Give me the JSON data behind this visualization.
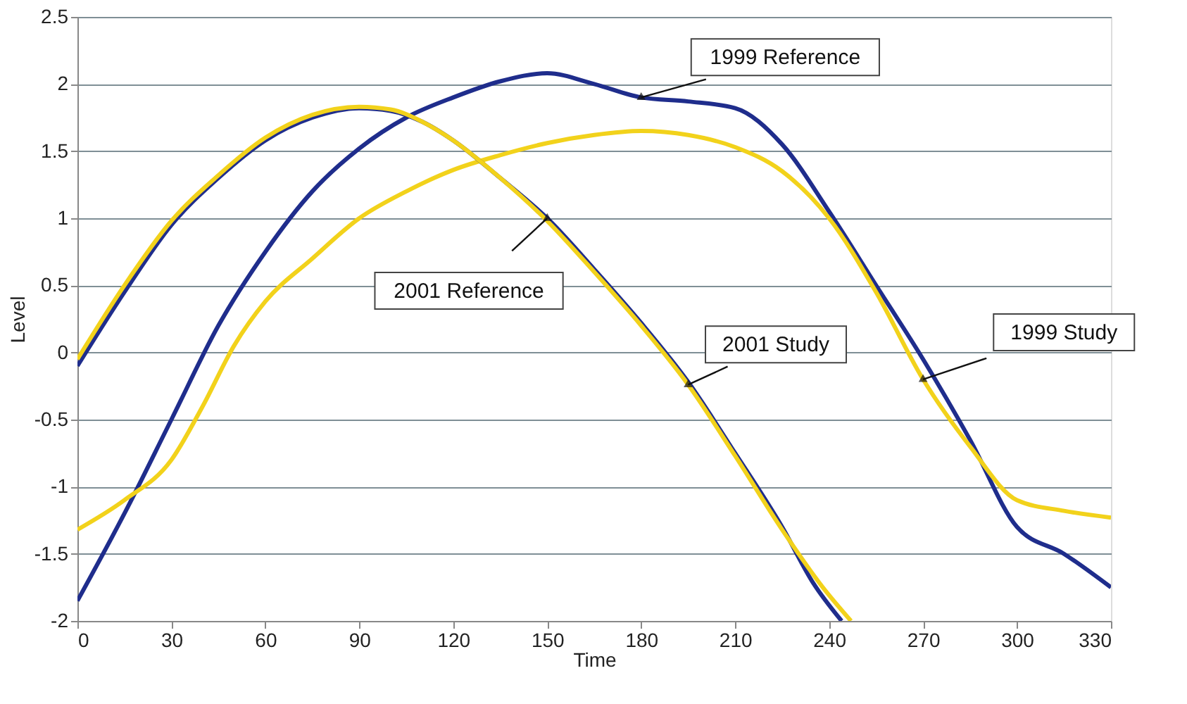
{
  "chart_data": {
    "type": "line",
    "xlabel": "Time",
    "ylabel": "Level",
    "xlim": [
      0,
      330
    ],
    "xticks": [
      0,
      30,
      60,
      90,
      120,
      150,
      180,
      210,
      240,
      270,
      300,
      330
    ],
    "ylim": [
      -2,
      2.5
    ],
    "yticks": [
      -2,
      -1.5,
      -1,
      -0.5,
      0,
      0.5,
      1,
      1.5,
      2,
      2.5
    ],
    "grid": "y",
    "legend": false,
    "line_style": "solid",
    "marker": "none",
    "series": [
      {
        "name": "1999 Reference",
        "color": "#1f2d8c",
        "x": [
          0,
          15,
          30,
          45,
          60,
          75,
          90,
          105,
          120,
          135,
          150,
          165,
          180,
          195,
          210,
          225,
          240,
          255,
          270,
          285,
          300,
          315,
          330
        ],
        "values": [
          -1.85,
          -1.2,
          -0.5,
          0.2,
          0.75,
          1.2,
          1.52,
          1.75,
          1.9,
          2.02,
          2.08,
          2.0,
          1.9,
          1.87,
          1.82,
          1.55,
          1.05,
          0.5,
          -0.05,
          -0.65,
          -1.3,
          -1.5,
          -1.75
        ]
      },
      {
        "name": "1999 Study",
        "color": "#f2d21b",
        "x": [
          0,
          15,
          30,
          40,
          50,
          60,
          75,
          90,
          105,
          120,
          135,
          150,
          165,
          180,
          195,
          210,
          225,
          240,
          255,
          270,
          285,
          300,
          315,
          330
        ],
        "values": [
          -1.32,
          -1.1,
          -0.8,
          -0.4,
          0.05,
          0.38,
          0.7,
          1.0,
          1.2,
          1.36,
          1.47,
          1.56,
          1.62,
          1.65,
          1.62,
          1.53,
          1.35,
          1.0,
          0.45,
          -0.2,
          -0.7,
          -1.1,
          -1.18,
          -1.23
        ]
      },
      {
        "name": "2001 Reference",
        "color": "#1f2d8c",
        "x": [
          0,
          15,
          30,
          45,
          60,
          75,
          90,
          100,
          110,
          120,
          135,
          150,
          165,
          180,
          195,
          210,
          225,
          235,
          244
        ],
        "values": [
          -0.1,
          0.45,
          0.95,
          1.3,
          1.58,
          1.75,
          1.82,
          1.8,
          1.72,
          1.58,
          1.3,
          1.0,
          0.62,
          0.22,
          -0.22,
          -0.75,
          -1.3,
          -1.72,
          -2.0
        ]
      },
      {
        "name": "2001 Study",
        "color": "#f2d21b",
        "x": [
          0,
          15,
          30,
          45,
          60,
          75,
          90,
          100,
          110,
          120,
          135,
          150,
          165,
          180,
          195,
          210,
          225,
          238,
          247
        ],
        "values": [
          -0.05,
          0.5,
          0.98,
          1.32,
          1.6,
          1.77,
          1.83,
          1.81,
          1.72,
          1.58,
          1.3,
          0.98,
          0.6,
          0.2,
          -0.24,
          -0.77,
          -1.32,
          -1.75,
          -2.0
        ]
      }
    ]
  }
}
